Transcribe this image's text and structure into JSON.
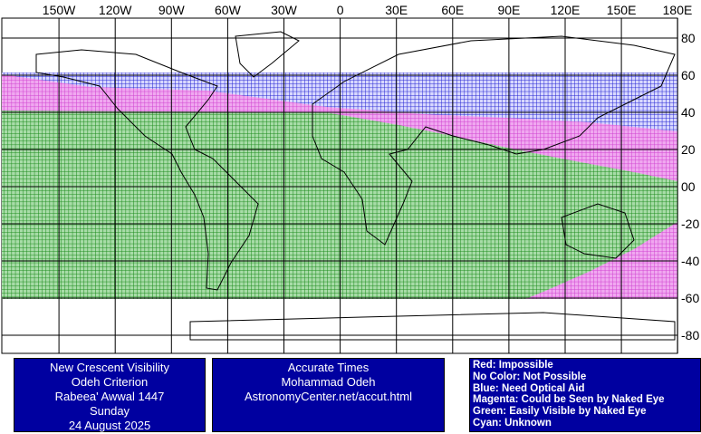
{
  "map": {
    "longitude_labels": [
      "150W",
      "120W",
      "90W",
      "60W",
      "30W",
      "0",
      "30E",
      "60E",
      "90E",
      "120E",
      "150E",
      "180E"
    ],
    "latitude_labels": [
      "80",
      "60",
      "40",
      "20",
      "00",
      "-20",
      "-40",
      "-60",
      "-80"
    ]
  },
  "info_boxes": [
    {
      "lines": [
        "New Crescent Visibility",
        "Odeh Criterion",
        "Rabeea' Awwal 1447",
        "Sunday",
        "24 August 2025"
      ]
    },
    {
      "lines": [
        "Accurate Times",
        "Mohammad Odeh",
        "AstronomyCenter.net/accut.html"
      ]
    }
  ],
  "legend": {
    "lines": [
      "Red: Impossible",
      "No Color: Not Possible",
      "Blue: Need Optical Aid",
      "Magenta: Could be Seen by Naked Eye",
      "Green: Easily Visible by Naked Eye",
      "Cyan: Unknown"
    ]
  }
}
